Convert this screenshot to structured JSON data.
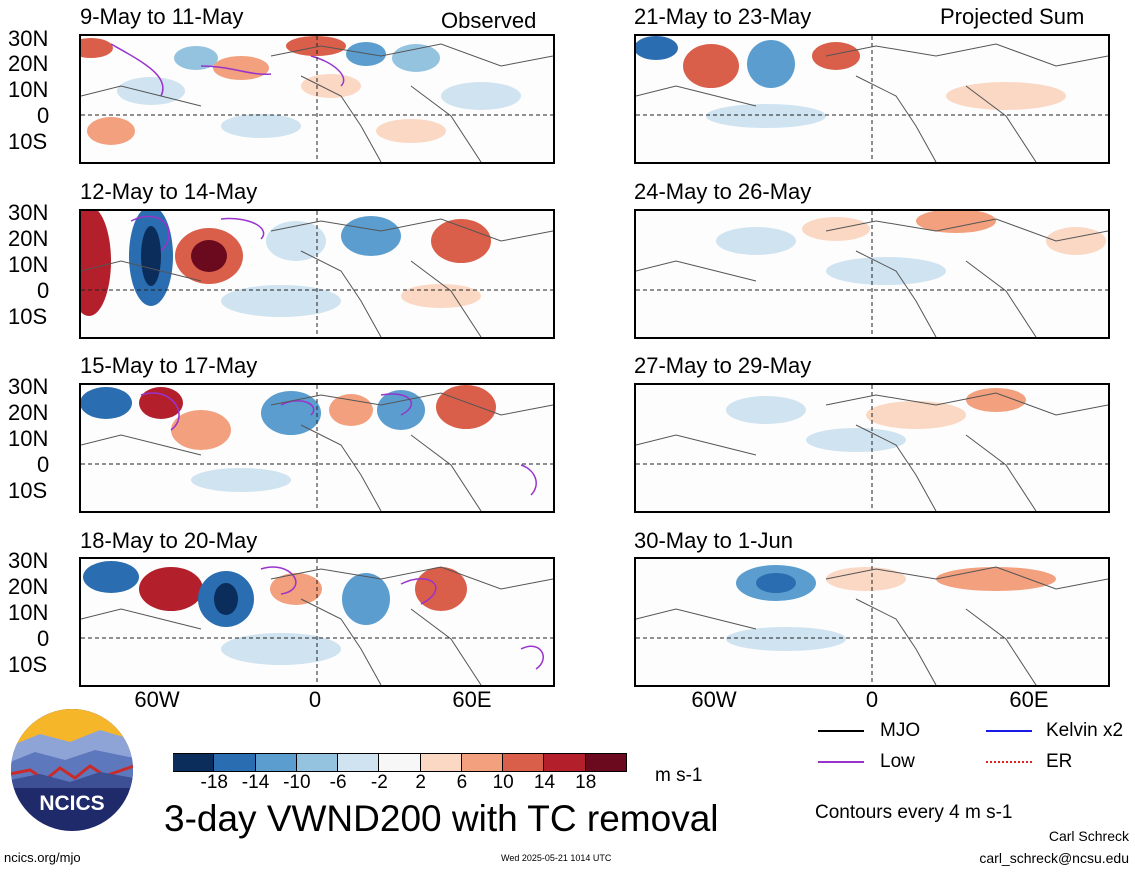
{
  "headers": {
    "observed": "Observed",
    "projected": "Projected Sum"
  },
  "panels": {
    "left": [
      {
        "title": "9-May to 11-May"
      },
      {
        "title": "12-May to 14-May"
      },
      {
        "title": "15-May to 17-May"
      },
      {
        "title": "18-May to 20-May"
      }
    ],
    "right": [
      {
        "title": "21-May to 23-May"
      },
      {
        "title": "24-May to 26-May"
      },
      {
        "title": "27-May to 29-May"
      },
      {
        "title": "30-May to 1-Jun"
      }
    ]
  },
  "axes": {
    "lat_labels": [
      "30N",
      "20N",
      "10N",
      "0",
      "10S"
    ],
    "lon_labels": [
      "60W",
      "0",
      "60E"
    ]
  },
  "colorbar": {
    "labels": [
      "-18",
      "-14",
      "-10",
      "-6",
      "-2",
      "2",
      "6",
      "10",
      "14",
      "18"
    ],
    "colors": [
      "#0b2d5c",
      "#2a6db0",
      "#5b9dcf",
      "#94c3e0",
      "#cfe3f0",
      "#f7f7f7",
      "#fbd8c4",
      "#f2a07e",
      "#d95f4a",
      "#b3202c",
      "#6b0a1f"
    ],
    "units": "m s-1"
  },
  "title": "3-day VWND200 with TC removal",
  "legend": {
    "mjo": "MJO",
    "kelvin": "Kelvin x2",
    "low": "Low",
    "er": "ER",
    "mjo_color": "#000000",
    "kelvin_color": "#1a1ae6",
    "low_color": "#9933cc",
    "er_color": "#e62020",
    "note": "Contours every 4 m s-1"
  },
  "logo": {
    "text": "NCICS"
  },
  "footer": {
    "url": "ncics.org/mjo",
    "timestamp": "Wed 2025-05-21 1014 UTC",
    "author": "Carl Schreck",
    "email": "carl_schreck@ncsu.edu"
  }
}
